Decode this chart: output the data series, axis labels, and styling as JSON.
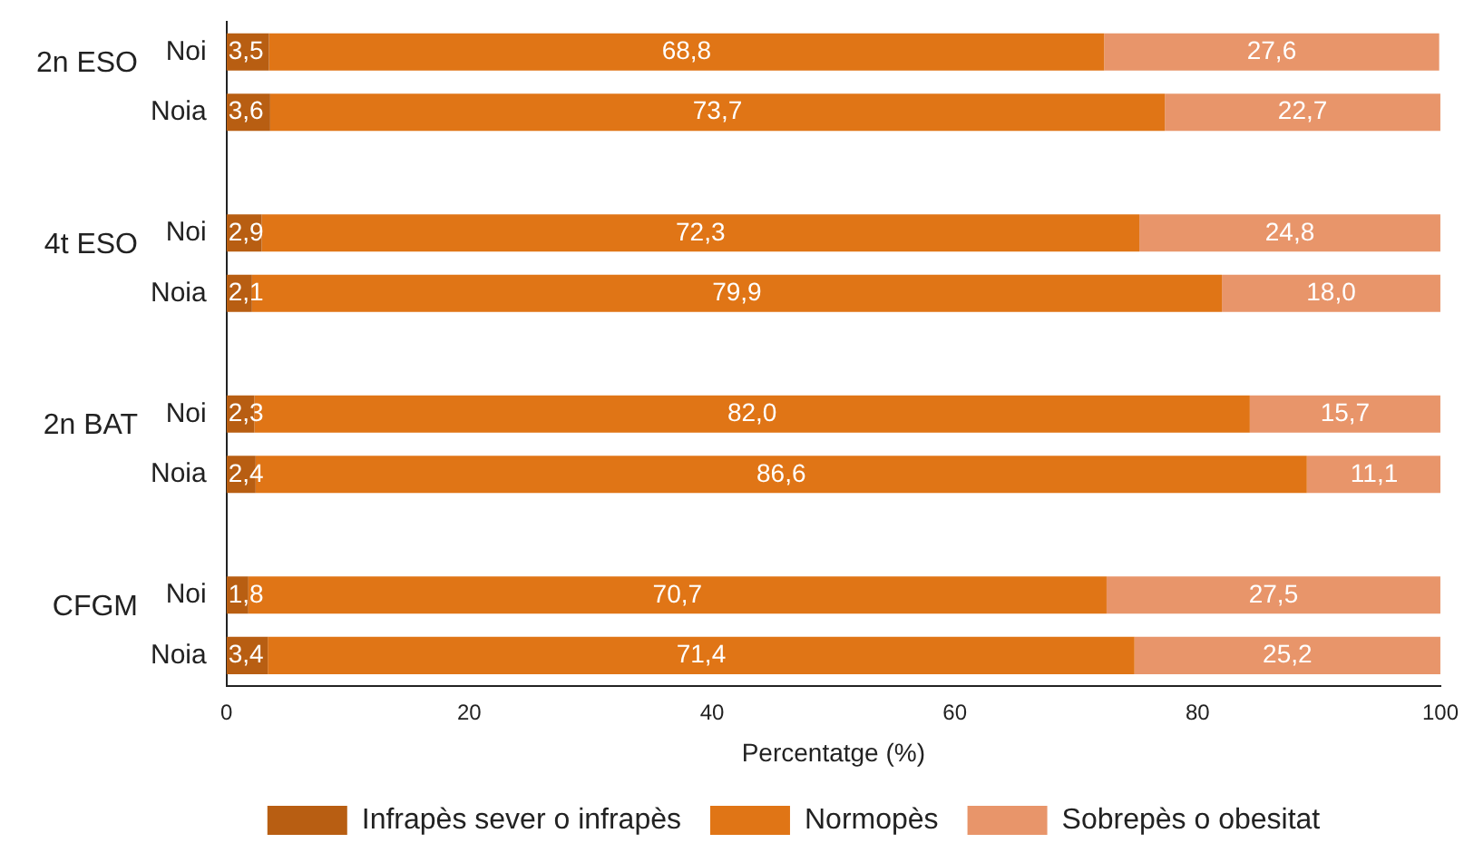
{
  "chart_data": {
    "type": "bar",
    "orientation": "horizontal",
    "stacked": true,
    "categories": [
      "Noi",
      "Noia",
      "Noi",
      "Noia",
      "Noi",
      "Noia",
      "Noi",
      "Noia"
    ],
    "annotations": [
      "2n ESO",
      "4t ESO",
      "2n BAT",
      "CFGM"
    ],
    "xlabel": "Percentatge (%)",
    "xlim": [
      0,
      100
    ],
    "xticks": [
      0,
      20,
      40,
      60,
      80,
      100
    ],
    "grid": false,
    "legend": "bottom",
    "series": [
      {
        "name": "Infrapès sever o infrapès",
        "color": "#b85e12",
        "values": [
          3.5,
          3.6,
          2.9,
          2.1,
          2.3,
          2.4,
          1.8,
          3.4
        ],
        "value_labels": [
          "3,5",
          "3,6",
          "2,9",
          "2,1",
          "2,3",
          "2,4",
          "1,8",
          "3,4"
        ]
      },
      {
        "name": "Normopès",
        "color": "#e07516",
        "values": [
          68.8,
          73.7,
          72.3,
          79.9,
          82.0,
          86.6,
          70.7,
          71.4
        ],
        "value_labels": [
          "68,8",
          "73,7",
          "72,3",
          "79,9",
          "82,0",
          "86,6",
          "70,7",
          "71,4"
        ]
      },
      {
        "name": "Sobrepès o obesitat",
        "color": "#e8956a",
        "values": [
          27.6,
          22.7,
          24.8,
          18.0,
          15.7,
          11.1,
          27.5,
          25.2
        ],
        "value_labels": [
          "27,6",
          "22,7",
          "24,8",
          "18,0",
          "15,7",
          "11,1",
          "27,5",
          "25,2"
        ]
      }
    ]
  }
}
